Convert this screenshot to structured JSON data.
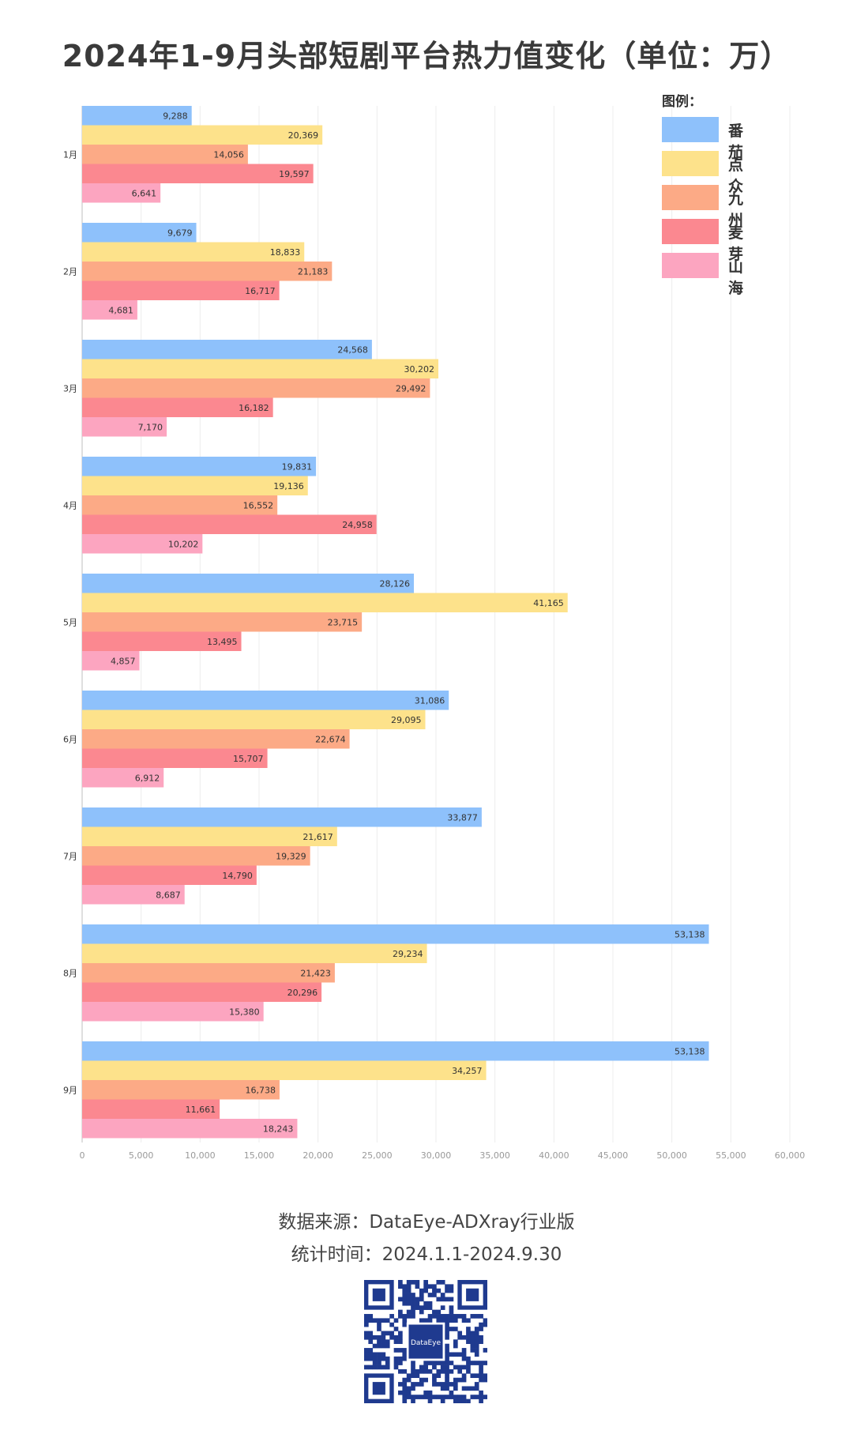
{
  "title": "2024年1-9月头部短剧平台热力值变化（单位：万）",
  "legend_title": "图例：",
  "footer": {
    "source": "数据来源：DataEye-ADXray行业版",
    "period": "统计时间：2024.1.1-2024.9.30"
  },
  "qr": {
    "logo_text": "DataEye"
  },
  "chart_data": {
    "type": "bar",
    "orientation": "horizontal",
    "categories": [
      "1月",
      "2月",
      "3月",
      "4月",
      "5月",
      "6月",
      "7月",
      "8月",
      "9月"
    ],
    "series": [
      {
        "name": "番茄",
        "color": "#8ec1fb",
        "values": [
          9288,
          9679,
          24568,
          19831,
          28126,
          31086,
          33877,
          53138,
          53138
        ]
      },
      {
        "name": "点众",
        "color": "#fde28b",
        "values": [
          20369,
          18833,
          30202,
          19136,
          41165,
          29095,
          21617,
          29234,
          34257
        ]
      },
      {
        "name": "九州",
        "color": "#fcaa86",
        "values": [
          14056,
          21183,
          29492,
          16552,
          23715,
          22674,
          19329,
          21423,
          16738
        ]
      },
      {
        "name": "麦芽",
        "color": "#fb8890",
        "values": [
          19597,
          16717,
          16182,
          24958,
          13495,
          15707,
          14790,
          20296,
          11661
        ]
      },
      {
        "name": "山海",
        "color": "#fca5c0",
        "values": [
          6641,
          4681,
          7170,
          10202,
          4857,
          6912,
          8687,
          15380,
          18243
        ]
      }
    ],
    "xlim": [
      0,
      60000
    ],
    "xticks": [
      0,
      5000,
      10000,
      15000,
      20000,
      25000,
      30000,
      35000,
      40000,
      45000,
      50000,
      55000,
      60000
    ],
    "xtick_labels": [
      "0",
      "5,000",
      "10,000",
      "15,000",
      "20,000",
      "25,000",
      "30,000",
      "35,000",
      "40,000",
      "45,000",
      "50,000",
      "55,000",
      "60,000"
    ],
    "grid": true,
    "legend_position": "top-right"
  }
}
